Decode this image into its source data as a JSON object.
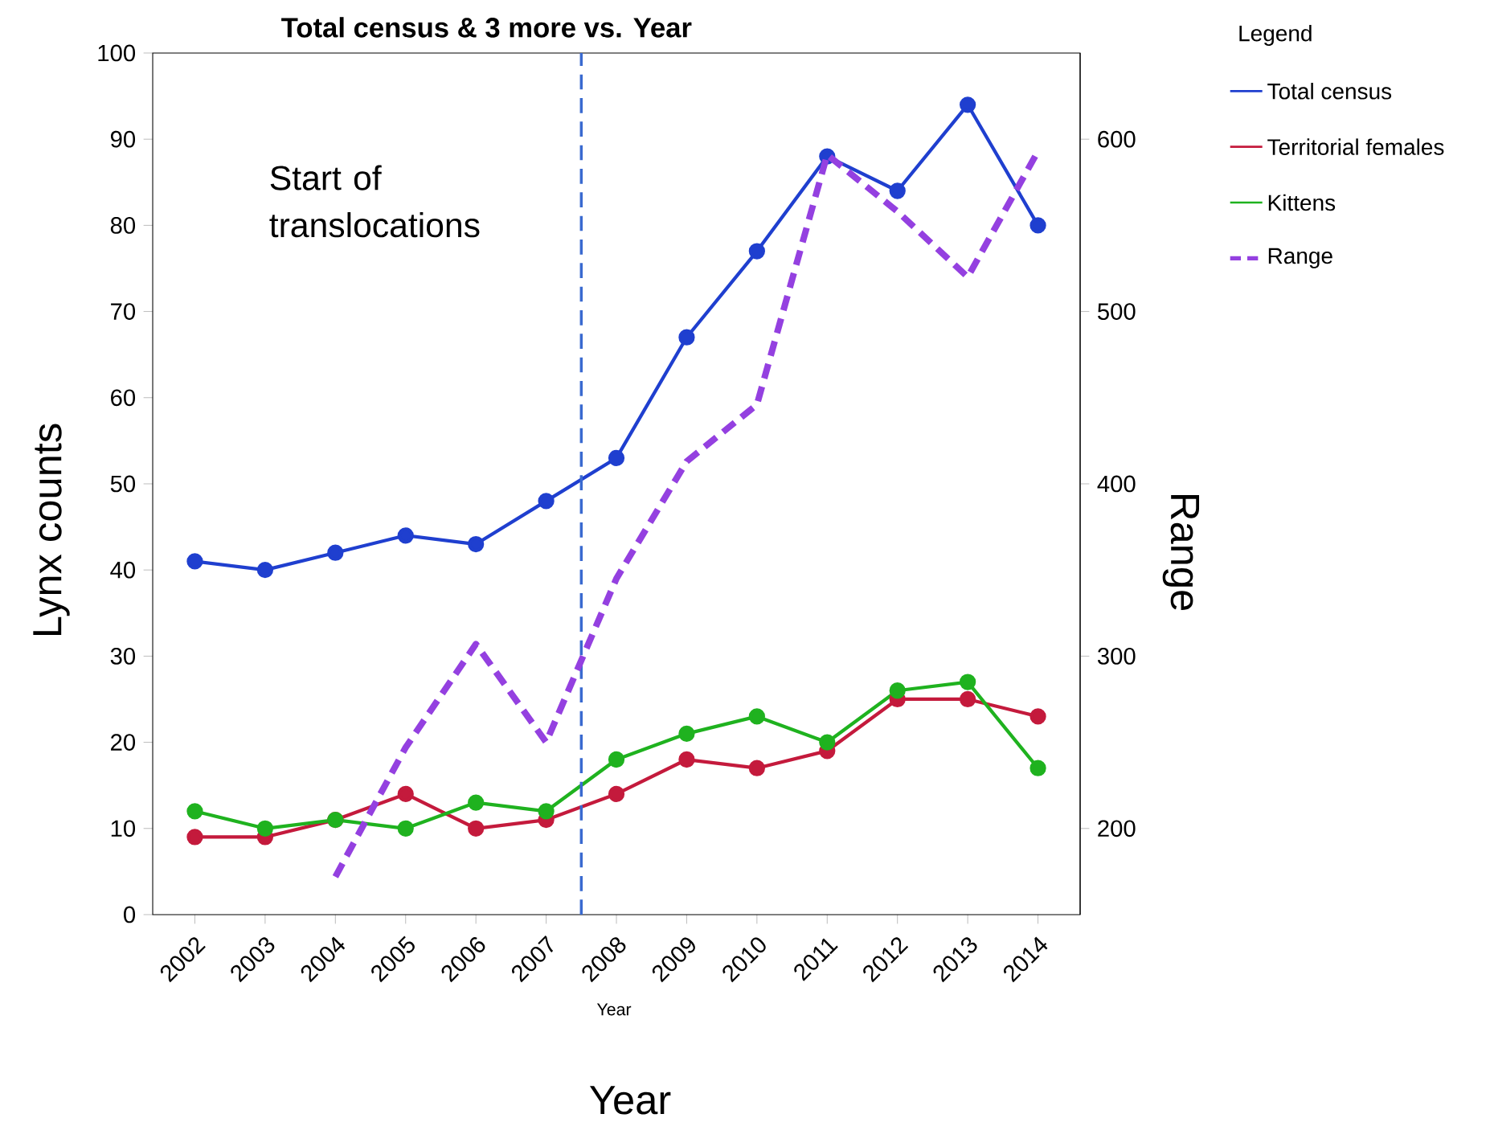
{
  "chart_data": {
    "type": "line",
    "title": "Total census & 3 more vs. Year",
    "xlabel": "Year",
    "ylabel": "Lynx counts",
    "y2label": "Range",
    "legend_title": "Legend",
    "x": [
      2002,
      2003,
      2004,
      2005,
      2006,
      2007,
      2008,
      2009,
      2010,
      2011,
      2012,
      2013,
      2014
    ],
    "series": [
      {
        "name": "Total census",
        "color": "#1f3fcf",
        "values": [
          41,
          40,
          42,
          44,
          43,
          48,
          53,
          67,
          77,
          88,
          84,
          94,
          80
        ]
      },
      {
        "name": "Territorial females",
        "color": "#c41a3c",
        "values": [
          9,
          9,
          11,
          14,
          10,
          11,
          14,
          18,
          17,
          19,
          25,
          25,
          23
        ]
      },
      {
        "name": "Kittens",
        "color": "#1fb21f",
        "values": [
          12,
          10,
          11,
          10,
          13,
          12,
          18,
          21,
          23,
          20,
          26,
          27,
          17
        ]
      },
      {
        "name": "Range",
        "color": "#9440e0",
        "axis": "y2",
        "marker": "none",
        "line_style": "dashed",
        "values": [
          null,
          null,
          172,
          247,
          307,
          250,
          345,
          413,
          446,
          591,
          558,
          520,
          593
        ]
      }
    ],
    "marker": "circle",
    "legend": "top right",
    "xlim": [
      2001.4,
      2014.6
    ],
    "xticks": [
      2002,
      2003,
      2004,
      2005,
      2006,
      2007,
      2008,
      2009,
      2010,
      2011,
      2012,
      2013,
      2014
    ],
    "ylim": [
      0,
      100
    ],
    "yticks": [
      0,
      10,
      20,
      30,
      40,
      50,
      60,
      70,
      80,
      90,
      100
    ],
    "y2lim": [
      150,
      650
    ],
    "y2ticks": [
      200,
      300,
      400,
      500,
      600
    ],
    "ref_lines": [
      {
        "axis": "x",
        "value": 2007.5,
        "color": "#3a6ad0",
        "line_style": "dashed"
      }
    ],
    "annotations": [
      "Start of translocations",
      "Year"
    ]
  }
}
